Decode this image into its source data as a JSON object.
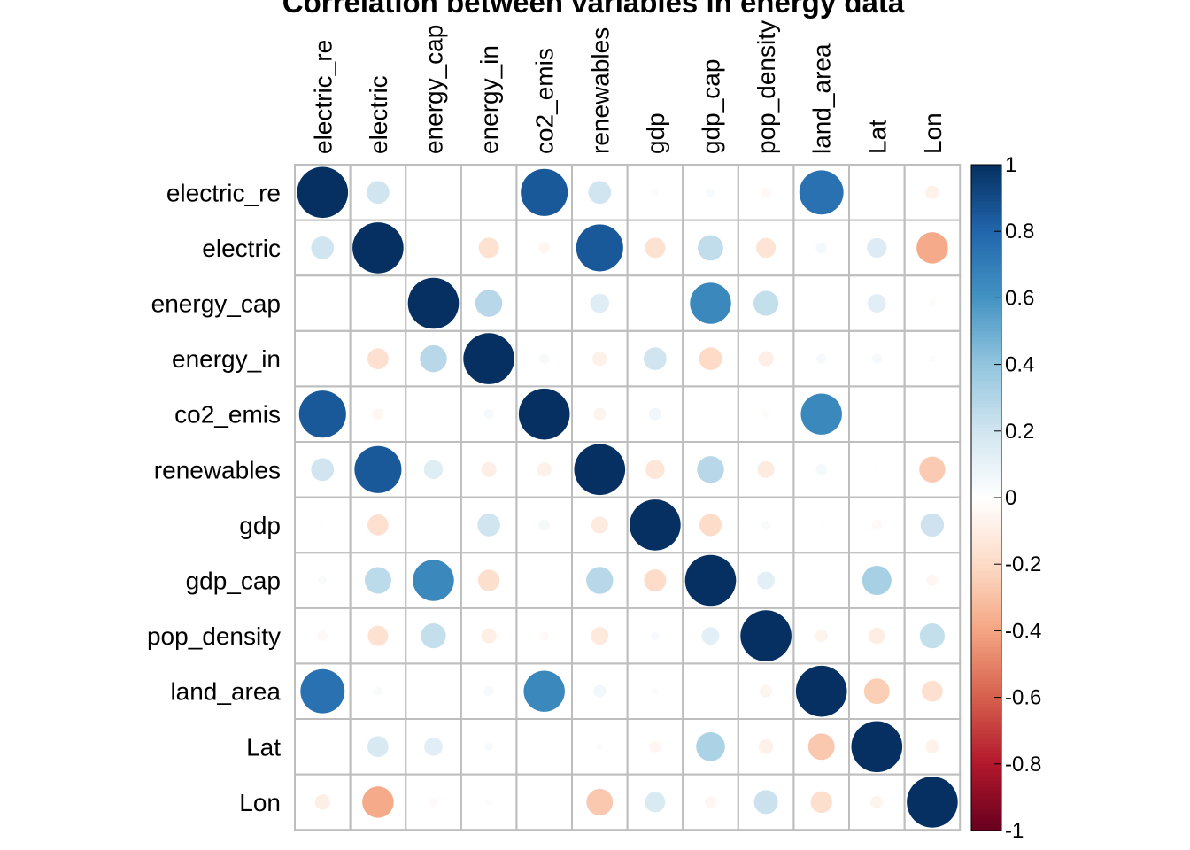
{
  "chart_data": {
    "type": "heatmap",
    "subtype": "correlation-circle-matrix",
    "title": "Correlation between variables in energy data",
    "variables": [
      "electric_re",
      "electric",
      "energy_cap",
      "energy_in",
      "co2_emis",
      "renewables",
      "gdp",
      "gdp_cap",
      "pop_density",
      "land_area",
      "Lat",
      "Lon"
    ],
    "matrix": [
      [
        1.0,
        0.2,
        0.01,
        0.01,
        0.85,
        0.2,
        0.02,
        0.03,
        -0.04,
        0.75,
        0.01,
        -0.07
      ],
      [
        0.2,
        1.0,
        0.0,
        -0.16,
        -0.05,
        0.85,
        -0.16,
        0.25,
        -0.15,
        0.05,
        0.15,
        -0.38
      ],
      [
        0.01,
        0.0,
        1.0,
        0.28,
        0.0,
        0.14,
        0.0,
        0.65,
        0.24,
        0.01,
        0.13,
        -0.02
      ],
      [
        0.01,
        -0.17,
        0.28,
        1.0,
        0.04,
        -0.08,
        0.2,
        -0.2,
        -0.09,
        0.04,
        0.04,
        0.02
      ],
      [
        0.85,
        -0.05,
        0.0,
        0.04,
        1.0,
        -0.06,
        0.06,
        0.0,
        -0.02,
        0.65,
        0.0,
        0.0
      ],
      [
        0.2,
        0.85,
        0.14,
        -0.09,
        -0.08,
        1.0,
        -0.14,
        0.28,
        -0.11,
        0.05,
        0.01,
        -0.26
      ],
      [
        0.01,
        -0.17,
        0.0,
        0.2,
        0.05,
        -0.11,
        1.0,
        -0.19,
        0.03,
        0.01,
        -0.04,
        0.21
      ],
      [
        0.03,
        0.27,
        0.65,
        -0.18,
        0.0,
        0.28,
        -0.19,
        1.0,
        0.12,
        0.0,
        0.33,
        -0.05
      ],
      [
        -0.04,
        -0.16,
        0.24,
        -0.09,
        -0.03,
        -0.12,
        0.03,
        0.12,
        1.0,
        -0.06,
        -0.1,
        0.24
      ],
      [
        0.75,
        0.03,
        0.0,
        0.04,
        0.65,
        0.06,
        0.02,
        0.0,
        -0.06,
        1.0,
        -0.25,
        -0.17
      ],
      [
        0.0,
        0.17,
        0.13,
        0.03,
        0.0,
        0.02,
        -0.05,
        0.32,
        -0.08,
        -0.27,
        1.0,
        -0.07
      ],
      [
        -0.09,
        -0.38,
        -0.03,
        0.02,
        0.0,
        -0.27,
        0.16,
        -0.05,
        0.22,
        -0.18,
        -0.06,
        1.0
      ]
    ],
    "colorbar": {
      "ticks": [
        "1",
        "0.8",
        "0.6",
        "0.4",
        "0.2",
        "0",
        "-0.2",
        "-0.4",
        "-0.6",
        "-0.8",
        "-1"
      ],
      "range": [
        -1,
        1
      ],
      "colors": {
        "negative_max": "#67001F",
        "neutral": "#FFFFFF",
        "positive_max": "#053061"
      }
    },
    "grid": true,
    "legend": "right"
  }
}
